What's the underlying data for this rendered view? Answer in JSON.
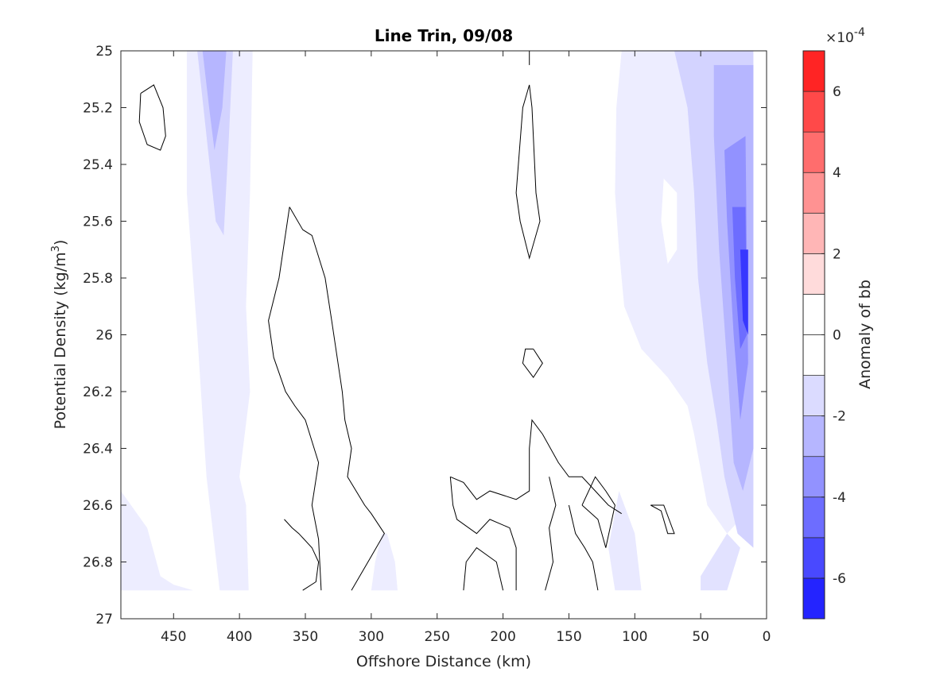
{
  "chart_data": {
    "type": "contour",
    "title": "Line Trin, 09/08",
    "xlabel": "Offshore Distance (km)",
    "ylabel": "Potential Density (kg/m",
    "ylabel_sup": "3",
    "ylabel_close": ")",
    "x_reversed": true,
    "xlim": [
      0,
      490
    ],
    "ylim": [
      25,
      27
    ],
    "y_reversed": true,
    "xticks": [
      450,
      400,
      350,
      300,
      250,
      200,
      150,
      100,
      50,
      0
    ],
    "xtick_labels": [
      "450",
      "400",
      "350",
      "300",
      "250",
      "200",
      "150",
      "100",
      "50",
      "0"
    ],
    "yticks": [
      25,
      25.2,
      25.4,
      25.6,
      25.8,
      26,
      26.2,
      26.4,
      26.6,
      26.8,
      27
    ],
    "ytick_labels": [
      "25",
      "25.2",
      "25.4",
      "25.6",
      "25.8",
      "26",
      "26.2",
      "26.4",
      "26.6",
      "26.8",
      "27"
    ],
    "data_bottom": 26.9,
    "colorbar": {
      "label": "Anomaly of bb",
      "exponent_prefix": "×10",
      "exponent": "-4",
      "range": [
        -7,
        7
      ],
      "levels": 14,
      "ticks": [
        -6,
        -4,
        -2,
        0,
        2,
        4,
        6
      ],
      "tick_labels": [
        "-6",
        "-4",
        "-2",
        "0",
        "2",
        "4",
        "6"
      ],
      "negative_color": "#0000ff",
      "positive_color": "#ff0000"
    },
    "filled_regions": [
      {
        "name": "band-450-390",
        "anomaly": -0.5,
        "polygon": [
          [
            490,
            26.55
          ],
          [
            470,
            26.68
          ],
          [
            460,
            26.85
          ],
          [
            450,
            26.88
          ],
          [
            435,
            26.9
          ],
          [
            490,
            26.9
          ]
        ]
      },
      {
        "name": "band-400-390",
        "anomaly": -0.5,
        "polygon": [
          [
            440,
            25.0
          ],
          [
            390,
            25.0
          ],
          [
            392,
            25.5
          ],
          [
            395,
            25.9
          ],
          [
            392,
            26.2
          ],
          [
            400,
            26.5
          ],
          [
            395,
            26.6
          ],
          [
            393,
            26.9
          ],
          [
            415,
            26.9
          ],
          [
            425,
            26.5
          ],
          [
            432,
            26.0
          ],
          [
            440,
            25.5
          ]
        ]
      },
      {
        "name": "core-420",
        "anomaly": -1.2,
        "polygon": [
          [
            432,
            25.0
          ],
          [
            405,
            25.0
          ],
          [
            408,
            25.3
          ],
          [
            412,
            25.65
          ],
          [
            418,
            25.6
          ],
          [
            425,
            25.3
          ]
        ]
      },
      {
        "name": "core-420-inner",
        "anomaly": -2.0,
        "polygon": [
          [
            428,
            25.0
          ],
          [
            410,
            25.0
          ],
          [
            413,
            25.2
          ],
          [
            419,
            25.35
          ],
          [
            423,
            25.2
          ]
        ]
      },
      {
        "name": "band-290",
        "anomaly": -0.5,
        "polygon": [
          [
            300,
            26.9
          ],
          [
            280,
            26.9
          ],
          [
            282,
            26.8
          ],
          [
            288,
            26.7
          ],
          [
            292,
            26.7
          ],
          [
            297,
            26.8
          ]
        ]
      },
      {
        "name": "east-outer",
        "anomaly": -0.5,
        "polygon": [
          [
            110,
            25.0
          ],
          [
            10,
            25.0
          ],
          [
            10,
            26.6
          ],
          [
            30,
            26.7
          ],
          [
            45,
            26.6
          ],
          [
            55,
            26.35
          ],
          [
            60,
            26.25
          ],
          [
            75,
            26.15
          ],
          [
            95,
            26.05
          ],
          [
            108,
            25.9
          ],
          [
            112,
            25.7
          ],
          [
            115,
            25.5
          ],
          [
            114,
            25.2
          ]
        ]
      },
      {
        "name": "east-mid",
        "anomaly": -1.2,
        "polygon": [
          [
            70,
            25.0
          ],
          [
            10,
            25.0
          ],
          [
            10,
            26.75
          ],
          [
            22,
            26.7
          ],
          [
            32,
            26.5
          ],
          [
            38,
            26.3
          ],
          [
            45,
            26.1
          ],
          [
            52,
            25.8
          ],
          [
            55,
            25.5
          ],
          [
            60,
            25.2
          ]
        ]
      },
      {
        "name": "east-bottom-strip",
        "anomaly": -0.8,
        "polygon": [
          [
            50,
            26.85
          ],
          [
            30,
            26.7
          ],
          [
            20,
            26.75
          ],
          [
            30,
            26.9
          ],
          [
            50,
            26.9
          ]
        ]
      },
      {
        "name": "east-inner-1",
        "anomaly": -2.0,
        "polygon": [
          [
            40,
            25.05
          ],
          [
            10,
            25.05
          ],
          [
            10,
            26.4
          ],
          [
            18,
            26.55
          ],
          [
            25,
            26.45
          ],
          [
            30,
            26.1
          ],
          [
            36,
            25.7
          ],
          [
            40,
            25.3
          ]
        ]
      },
      {
        "name": "east-inner-2",
        "anomaly": -3.0,
        "polygon": [
          [
            32,
            25.35
          ],
          [
            16,
            25.3
          ],
          [
            14,
            26.1
          ],
          [
            20,
            26.3
          ],
          [
            25,
            26.0
          ],
          [
            30,
            25.6
          ]
        ]
      },
      {
        "name": "east-inner-3",
        "anomaly": -4.0,
        "polygon": [
          [
            26,
            25.55
          ],
          [
            16,
            25.55
          ],
          [
            15,
            26.0
          ],
          [
            20,
            26.05
          ],
          [
            24,
            25.8
          ]
        ]
      },
      {
        "name": "east-inner-4",
        "anomaly": -5.5,
        "polygon": [
          [
            20,
            25.7
          ],
          [
            14,
            25.7
          ],
          [
            14,
            26.0
          ],
          [
            18,
            25.95
          ]
        ]
      },
      {
        "name": "east-bottom-dip",
        "anomaly": -0.6,
        "polygon": [
          [
            112,
            26.55
          ],
          [
            100,
            26.7
          ],
          [
            95,
            26.9
          ],
          [
            115,
            26.9
          ],
          [
            120,
            26.75
          ]
        ]
      }
    ],
    "white_holes": [
      {
        "polygon": [
          [
            78,
            25.45
          ],
          [
            68,
            25.5
          ],
          [
            68,
            25.7
          ],
          [
            75,
            25.75
          ],
          [
            80,
            25.6
          ]
        ]
      },
      {
        "polygon": [
          [
            110,
            26.4
          ],
          [
            90,
            26.4
          ],
          [
            90,
            26.55
          ],
          [
            100,
            26.6
          ],
          [
            112,
            26.55
          ]
        ]
      }
    ],
    "contours": [
      [
        [
          475,
          25.15
        ],
        [
          465,
          25.12
        ],
        [
          458,
          25.2
        ],
        [
          456,
          25.3
        ],
        [
          460,
          25.35
        ],
        [
          470,
          25.33
        ],
        [
          476,
          25.25
        ],
        [
          475,
          25.15
        ]
      ],
      [
        [
          362,
          25.55
        ],
        [
          370,
          25.8
        ],
        [
          378,
          25.95
        ],
        [
          374,
          26.08
        ],
        [
          365,
          26.2
        ],
        [
          358,
          26.25
        ],
        [
          350,
          26.3
        ],
        [
          340,
          26.45
        ],
        [
          345,
          26.6
        ],
        [
          340,
          26.72
        ],
        [
          338,
          26.9
        ]
      ],
      [
        [
          362,
          25.55
        ],
        [
          352,
          25.63
        ],
        [
          345,
          25.65
        ],
        [
          335,
          25.8
        ],
        [
          330,
          25.95
        ],
        [
          322,
          26.2
        ],
        [
          320,
          26.3
        ],
        [
          315,
          26.4
        ],
        [
          318,
          26.5
        ],
        [
          305,
          26.6
        ],
        [
          300,
          26.63
        ],
        [
          290,
          26.7
        ],
        [
          300,
          26.78
        ],
        [
          315,
          26.9
        ]
      ],
      [
        [
          352,
          26.9
        ],
        [
          342,
          26.87
        ],
        [
          340,
          26.8
        ],
        [
          345,
          26.75
        ],
        [
          355,
          26.7
        ],
        [
          360,
          26.68
        ],
        [
          366,
          26.65
        ]
      ],
      [
        [
          180,
          25.12
        ],
        [
          178,
          25.2
        ],
        [
          175,
          25.5
        ],
        [
          172,
          25.6
        ],
        [
          180,
          25.73
        ],
        [
          187,
          25.6
        ],
        [
          190,
          25.5
        ],
        [
          185,
          25.2
        ],
        [
          180,
          25.12
        ]
      ],
      [
        [
          180,
          25.0
        ],
        [
          180,
          25.05
        ]
      ],
      [
        [
          177,
          26.05
        ],
        [
          170,
          26.1
        ],
        [
          177,
          26.15
        ],
        [
          185,
          26.1
        ],
        [
          183,
          26.05
        ],
        [
          177,
          26.05
        ]
      ],
      [
        [
          240,
          26.5
        ],
        [
          230,
          26.52
        ],
        [
          220,
          26.58
        ],
        [
          210,
          26.55
        ],
        [
          190,
          26.58
        ],
        [
          180,
          26.55
        ],
        [
          180,
          26.4
        ],
        [
          178,
          26.3
        ],
        [
          170,
          26.35
        ],
        [
          158,
          26.45
        ],
        [
          150,
          26.5
        ],
        [
          140,
          26.5
        ],
        [
          130,
          26.55
        ],
        [
          120,
          26.6
        ],
        [
          110,
          26.63
        ]
      ],
      [
        [
          240,
          26.5
        ],
        [
          238,
          26.6
        ],
        [
          235,
          26.65
        ],
        [
          220,
          26.7
        ],
        [
          210,
          26.65
        ],
        [
          195,
          26.68
        ],
        [
          190,
          26.75
        ],
        [
          190,
          26.9
        ]
      ],
      [
        [
          165,
          26.5
        ],
        [
          160,
          26.6
        ],
        [
          165,
          26.68
        ],
        [
          162,
          26.8
        ],
        [
          168,
          26.9
        ]
      ],
      [
        [
          230,
          26.9
        ],
        [
          228,
          26.8
        ],
        [
          220,
          26.75
        ],
        [
          205,
          26.8
        ],
        [
          200,
          26.9
        ]
      ],
      [
        [
          140,
          26.6
        ],
        [
          128,
          26.65
        ],
        [
          122,
          26.75
        ],
        [
          115,
          26.6
        ],
        [
          122,
          26.55
        ],
        [
          130,
          26.5
        ],
        [
          140,
          26.6
        ]
      ],
      [
        [
          150,
          26.6
        ],
        [
          145,
          26.7
        ],
        [
          138,
          26.75
        ],
        [
          132,
          26.8
        ],
        [
          128,
          26.9
        ]
      ],
      [
        [
          88,
          26.6
        ],
        [
          80,
          26.62
        ],
        [
          75,
          26.7
        ],
        [
          70,
          26.7
        ],
        [
          78,
          26.6
        ],
        [
          88,
          26.6
        ]
      ]
    ]
  }
}
